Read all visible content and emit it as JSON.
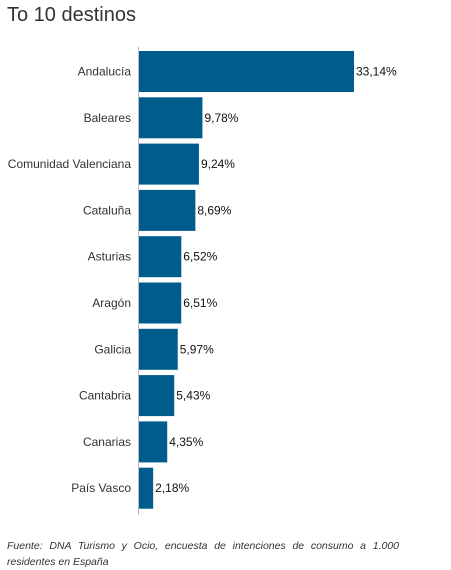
{
  "chart_data": {
    "type": "bar",
    "orientation": "horizontal",
    "title": "To 10 destinos",
    "categories": [
      "Andalucía",
      "Baleares",
      "Comunidad Valenciana",
      "Cataluña",
      "Asturias",
      "Aragón",
      "Galicia",
      "Cantabria",
      "Canarias",
      "País Vasco"
    ],
    "values": [
      33.14,
      9.78,
      9.24,
      8.69,
      6.52,
      6.51,
      5.97,
      5.43,
      4.35,
      2.18
    ],
    "value_labels": [
      "33,14%",
      "9,78%",
      "9,24%",
      "8,69%",
      "6,52%",
      "6,51%",
      "5,97%",
      "5,43%",
      "4,35%",
      "2,18%"
    ],
    "unit": "%",
    "xlabel": "",
    "ylabel": "",
    "grid": false,
    "legend": "none",
    "bar_color": "#005c8c"
  },
  "footnote": {
    "text": "Fuente:  DNA Turismo y Ocio, encuesta de intenciones de consumo a 1.000 residentes en España"
  }
}
